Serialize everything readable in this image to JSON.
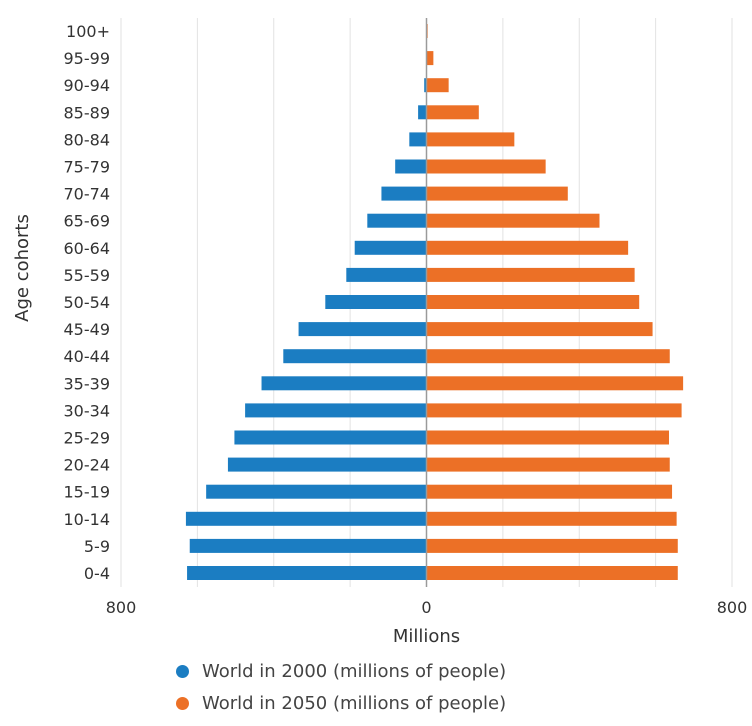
{
  "chart_data": {
    "type": "bar",
    "orientation": "horizontal",
    "layout": "population-pyramid",
    "categories": [
      "100+",
      "95-99",
      "90-94",
      "85-89",
      "80-84",
      "75-79",
      "70-74",
      "65-69",
      "60-64",
      "55-59",
      "50-54",
      "45-49",
      "40-44",
      "35-39",
      "30-34",
      "25-29",
      "20-24",
      "15-19",
      "10-14",
      "5-9",
      "0-4"
    ],
    "series": [
      {
        "name": "World in 2000 (millions of people)",
        "color": "#1b7dc2",
        "side": "left",
        "values": [
          0.2,
          1,
          6,
          22,
          45,
          82,
          118,
          155,
          188,
          210,
          265,
          335,
          375,
          432,
          475,
          503,
          520,
          577,
          630,
          620,
          627
        ]
      },
      {
        "name": "World in 2050 (millions of people)",
        "color": "#ec7026",
        "side": "right",
        "values": [
          3,
          18,
          58,
          137,
          230,
          312,
          370,
          453,
          528,
          545,
          557,
          592,
          637,
          672,
          668,
          635,
          637,
          643,
          655,
          658,
          658
        ]
      }
    ],
    "xlabel": "Millions",
    "ylabel": "Age cohorts",
    "xlim": [
      -800,
      800
    ],
    "x_ticks": [
      {
        "value": -800,
        "label": "800"
      },
      {
        "value": 0,
        "label": "0"
      },
      {
        "value": 800,
        "label": "800"
      }
    ],
    "grid": true,
    "legend": "bottom"
  }
}
